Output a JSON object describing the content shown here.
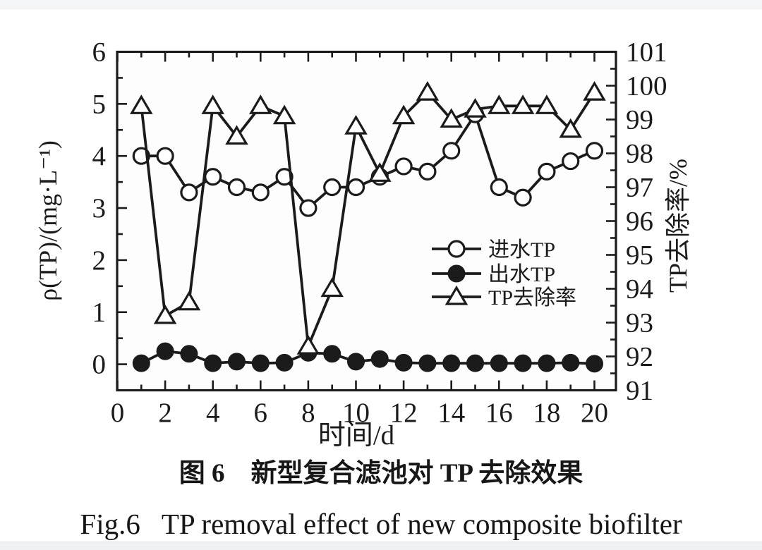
{
  "page": {
    "caption_zh": "图 6　新型复合滤池对 TP 去除效果",
    "caption_en": "Fig.6   TP removal effect of new composite biofilter"
  },
  "chart_data": {
    "type": "line",
    "title": "",
    "x": [
      1,
      2,
      3,
      4,
      5,
      6,
      7,
      8,
      9,
      10,
      11,
      12,
      13,
      14,
      15,
      16,
      17,
      18,
      19,
      20
    ],
    "xlabel": "时间/d",
    "x_ticks": [
      0,
      2,
      4,
      6,
      8,
      10,
      12,
      14,
      16,
      18,
      20
    ],
    "x_range": [
      0,
      20.9
    ],
    "grid": false,
    "axes": {
      "left": {
        "label": "ρ(TP)/(mg·L⁻¹)",
        "range": [
          0,
          6
        ],
        "major_ticks": [
          0,
          1,
          2,
          3,
          4,
          5,
          6
        ],
        "minor_step": 0.5
      },
      "right": {
        "label": "TP去除率/%",
        "range": [
          91,
          101
        ],
        "major_step": 1,
        "minor_step": 0.5
      }
    },
    "legend": {
      "position": "inside-middle-right"
    },
    "series": [
      {
        "id": "influent-tp",
        "name": "进水TP",
        "axis": "left",
        "unit": "mg/L",
        "marker": "circle-open",
        "values": [
          4.0,
          4.0,
          3.3,
          3.6,
          3.4,
          3.3,
          3.6,
          3.0,
          3.4,
          3.4,
          3.6,
          3.8,
          3.7,
          4.1,
          4.8,
          3.4,
          3.2,
          3.7,
          3.9,
          4.1
        ]
      },
      {
        "id": "effluent-tp",
        "name": "出水TP",
        "axis": "left",
        "unit": "mg/L",
        "marker": "circle-filled",
        "values": [
          0.02,
          0.25,
          0.2,
          0.02,
          0.05,
          0.02,
          0.03,
          0.22,
          0.2,
          0.05,
          0.1,
          0.03,
          0.02,
          0.02,
          0.02,
          0.02,
          0.02,
          0.02,
          0.03,
          0.01
        ]
      },
      {
        "id": "tp-removal-rate",
        "name": "TP去除率",
        "axis": "right",
        "unit": "%",
        "marker": "triangle-open",
        "values": [
          99.4,
          93.2,
          93.6,
          99.4,
          98.5,
          99.4,
          99.1,
          92.3,
          94.0,
          98.8,
          97.4,
          99.1,
          99.8,
          99.0,
          99.3,
          99.4,
          99.4,
          99.4,
          98.7,
          99.8
        ]
      }
    ],
    "colors": {
      "stroke": "#1b1b1b",
      "marker_fill": "#ffffff"
    }
  }
}
